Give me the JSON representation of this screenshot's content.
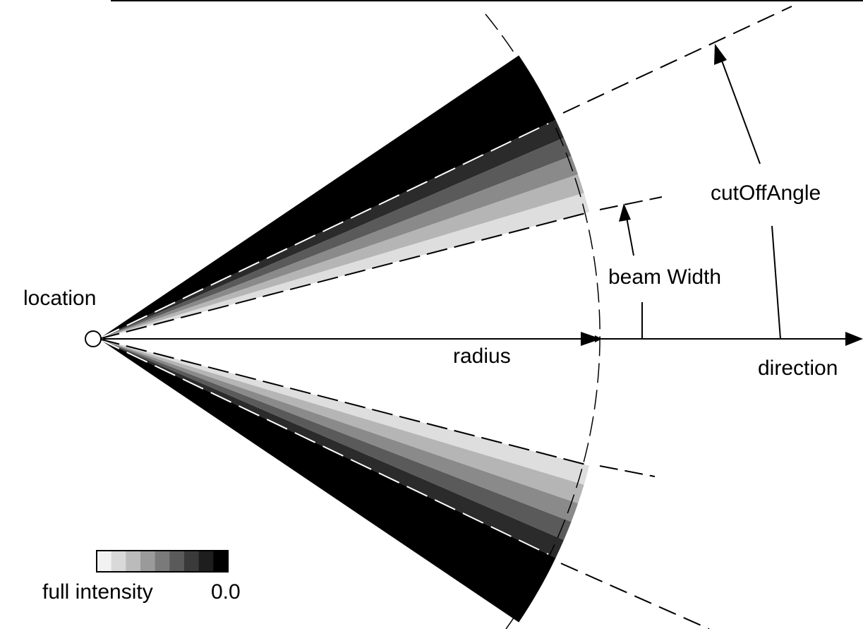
{
  "labels": {
    "location": "location",
    "radius": "radius",
    "beam_width": "beam Width",
    "cut_off_angle": "cutOffAngle",
    "direction": "direction"
  },
  "legend": {
    "left_label": "full intensity",
    "right_label": "0.0",
    "swatch_colors": [
      "#f2f2f2",
      "#d9d9d9",
      "#bbbbbb",
      "#9a9a9a",
      "#7a7a7a",
      "#5a5a5a",
      "#3a3a3a",
      "#1e1e1e",
      "#000000"
    ]
  },
  "colors": {
    "cone_outer": "#000000",
    "cone_bands": [
      "#2b2b2b",
      "#5a5a5a",
      "#8a8a8a",
      "#b5b5b5",
      "#dedede"
    ],
    "inner": "#ffffff",
    "line": "#000000"
  }
}
